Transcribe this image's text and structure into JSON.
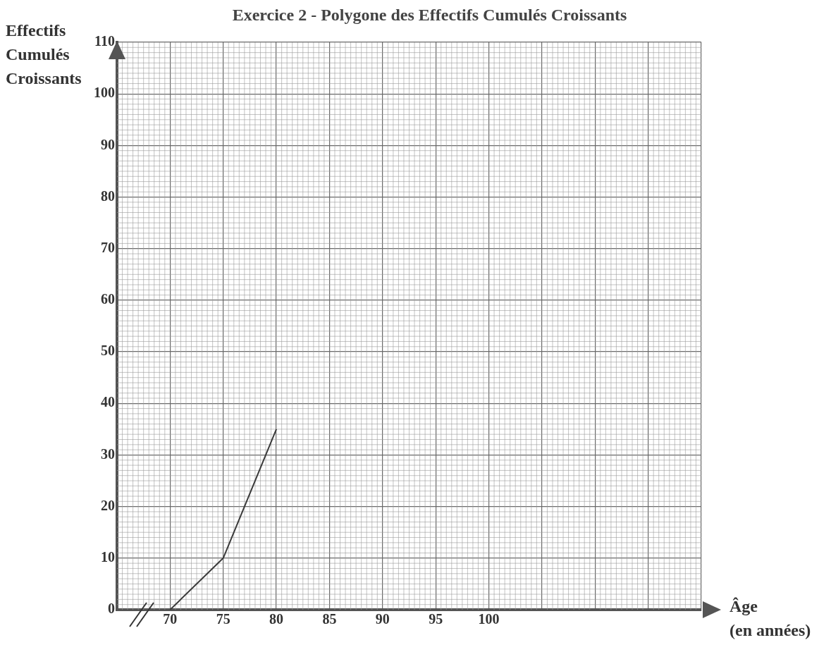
{
  "chart_data": {
    "type": "line",
    "title": "Exercice 2 - Polygone des Effectifs Cumulés Croissants",
    "xlabel": "Âge\n(en années)",
    "ylabel": "Effectifs\nCumulés\nCroissants",
    "x": [
      70,
      75,
      80
    ],
    "series": [
      {
        "color": "#3a3a3a",
        "values": [
          0,
          10,
          35
        ]
      }
    ],
    "xlim": [
      65,
      120
    ],
    "xticks": [
      {
        "value": 65,
        "label": null
      },
      70,
      75,
      80,
      85,
      90,
      95,
      100,
      {
        "value": 105,
        "label": null
      },
      {
        "value": 110,
        "label": null
      },
      {
        "value": 115,
        "label": null
      },
      {
        "value": 120,
        "label": null
      }
    ],
    "ylim": [
      0,
      110
    ],
    "yticks": [
      0,
      10,
      20,
      30,
      40,
      50,
      60,
      70,
      80,
      90,
      100,
      110
    ],
    "grid": true,
    "legend": false,
    "marker": "none",
    "line_style": "solid"
  }
}
